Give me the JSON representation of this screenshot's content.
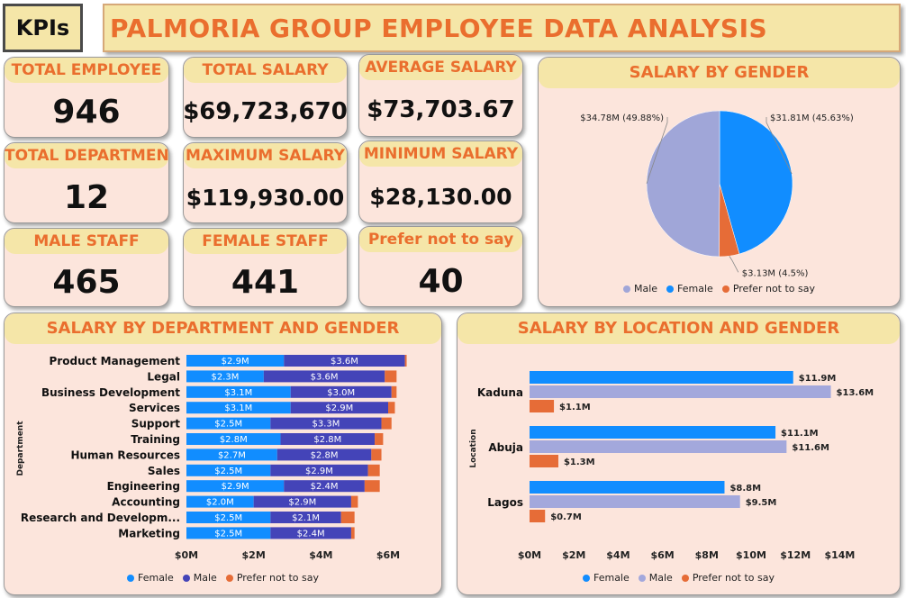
{
  "header": {
    "tag": "KPIs",
    "title": "PALMORIA GROUP EMPLOYEE DATA ANALYSIS"
  },
  "kpis": [
    {
      "label": "TOTAL EMPLOYEE",
      "value": "946"
    },
    {
      "label": "TOTAL SALARY",
      "value": "$69,723,670"
    },
    {
      "label": "AVERAGE SALARY",
      "value": "$73,703.67"
    },
    {
      "label": "TOTAL DEPARTMENT",
      "value": "12"
    },
    {
      "label": "MAXIMUM SALARY",
      "value": "$119,930.00"
    },
    {
      "label": "MINIMUM SALARY",
      "value": "$28,130.00"
    },
    {
      "label": "MALE STAFF",
      "value": "465"
    },
    {
      "label": "FEMALE STAFF",
      "value": "441"
    },
    {
      "label": "Prefer not to say",
      "value": "40"
    }
  ],
  "colors": {
    "female": "#118dff",
    "male_dept": "#4444b8",
    "male_loc": "#a3a8dc",
    "male_pie": "#a0a6d8",
    "prefer": "#e66c37"
  },
  "chart_data": [
    {
      "type": "pie",
      "title": "SALARY BY GENDER",
      "slices": [
        {
          "name": "Female",
          "value": 31.81,
          "label": "$31.81M (45.63%)",
          "color": "#118dff"
        },
        {
          "name": "Prefer not to say",
          "value": 3.13,
          "label": "$3.13M (4.5%)",
          "color": "#e66c37"
        },
        {
          "name": "Male",
          "value": 34.78,
          "label": "$34.78M (49.88%)",
          "color": "#a0a6d8"
        }
      ],
      "legend": [
        "Male",
        "Female",
        "Prefer not to say"
      ],
      "legend_position": "bottom"
    },
    {
      "type": "bar",
      "orientation": "horizontal-stacked",
      "title": "SALARY BY DEPARTMENT AND GENDER",
      "ylabel": "Department",
      "xlim": [
        0,
        7
      ],
      "xticks": [
        "$0M",
        "$2M",
        "$4M",
        "$6M"
      ],
      "categories": [
        "Product Management",
        "Legal",
        "Business Development",
        "Services",
        "Support",
        "Training",
        "Human Resources",
        "Sales",
        "Engineering",
        "Accounting",
        "Research and Developm...",
        "Marketing"
      ],
      "series": [
        {
          "name": "Female",
          "values": [
            2.9,
            2.3,
            3.1,
            3.1,
            2.5,
            2.8,
            2.7,
            2.5,
            2.9,
            2.0,
            2.5,
            2.5
          ],
          "labels": [
            "$2.9M",
            "$2.3M",
            "$3.1M",
            "$3.1M",
            "$2.5M",
            "$2.8M",
            "$2.7M",
            "$2.5M",
            "$2.9M",
            "$2.0M",
            "$2.5M",
            "$2.5M"
          ]
        },
        {
          "name": "Male",
          "values": [
            3.6,
            3.6,
            3.0,
            2.9,
            3.3,
            2.8,
            2.8,
            2.9,
            2.4,
            2.9,
            2.1,
            2.4
          ],
          "labels": [
            "$3.6M",
            "$3.6M",
            "$3.0M",
            "$2.9M",
            "$3.3M",
            "$2.8M",
            "$2.8M",
            "$2.9M",
            "$2.4M",
            "$2.9M",
            "$2.1M",
            "$2.4M"
          ]
        },
        {
          "name": "Prefer not to say",
          "values": [
            0.05,
            0.35,
            0.15,
            0.2,
            0.3,
            0.25,
            0.3,
            0.35,
            0.45,
            0.2,
            0.4,
            0.1
          ]
        }
      ],
      "legend": [
        "Female",
        "Male",
        "Prefer not to say"
      ],
      "legend_position": "bottom"
    },
    {
      "type": "bar",
      "orientation": "horizontal-clustered",
      "title": "SALARY BY LOCATION AND GENDER",
      "ylabel": "Location",
      "xlim": [
        0,
        14
      ],
      "xticks": [
        "$0M",
        "$2M",
        "$4M",
        "$6M",
        "$8M",
        "$10M",
        "$12M",
        "$14M"
      ],
      "categories": [
        "Kaduna",
        "Abuja",
        "Lagos"
      ],
      "series": [
        {
          "name": "Female",
          "values": [
            11.9,
            11.1,
            8.8
          ],
          "labels": [
            "$11.9M",
            "$11.1M",
            "$8.8M"
          ]
        },
        {
          "name": "Male",
          "values": [
            13.6,
            11.6,
            9.5
          ],
          "labels": [
            "$13.6M",
            "$11.6M",
            "$9.5M"
          ]
        },
        {
          "name": "Prefer not to say",
          "values": [
            1.1,
            1.3,
            0.7
          ],
          "labels": [
            "$1.1M",
            "$1.3M",
            "$0.7M"
          ]
        }
      ],
      "legend": [
        "Female",
        "Male",
        "Prefer not to say"
      ],
      "legend_position": "bottom"
    }
  ]
}
